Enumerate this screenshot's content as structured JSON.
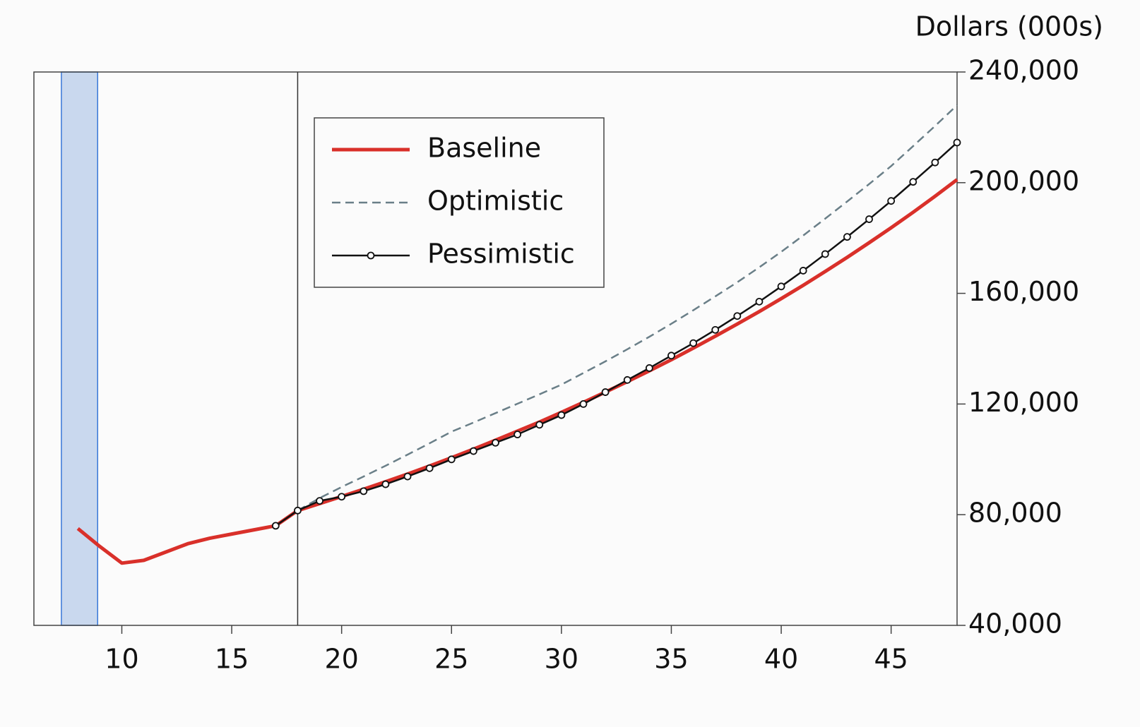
{
  "chart_data": {
    "type": "line",
    "y_axis_label": "Dollars (000s)",
    "x": [
      8,
      9,
      10,
      11,
      12,
      13,
      14,
      15,
      16,
      17,
      18,
      19,
      20,
      21,
      22,
      23,
      24,
      25,
      26,
      27,
      28,
      29,
      30,
      31,
      32,
      33,
      34,
      35,
      36,
      37,
      38,
      39,
      40,
      41,
      42,
      43,
      44,
      45,
      46,
      47,
      48
    ],
    "series": [
      {
        "name": "Baseline",
        "color": "#d9302a",
        "width": 5,
        "dashed": false,
        "values": [
          75000,
          68500,
          62500,
          63500,
          66500,
          69500,
          71500,
          73000,
          74500,
          76000,
          81500,
          84000,
          86600,
          89200,
          91900,
          94700,
          97600,
          100600,
          103700,
          106900,
          110200,
          113500,
          117000,
          120600,
          124300,
          128100,
          132000,
          136000,
          140200,
          144500,
          148900,
          153400,
          158100,
          162900,
          167900,
          173000,
          178300,
          183700,
          189300,
          195100,
          201100
        ]
      },
      {
        "name": "Optimistic",
        "color": "#6a7f88",
        "width": 2.5,
        "dashed": true,
        "values": [
          null,
          null,
          null,
          null,
          null,
          null,
          null,
          null,
          null,
          null,
          81500,
          86000,
          90000,
          93800,
          97700,
          101700,
          105800,
          110000,
          113300,
          116700,
          120100,
          123500,
          127000,
          131200,
          135400,
          139800,
          144300,
          149000,
          153900,
          158900,
          164000,
          169400,
          175000,
          180900,
          187000,
          193200,
          199500,
          206000,
          213200,
          220500,
          228000
        ]
      },
      {
        "name": "Pessimistic",
        "color": "#111111",
        "width": 2.5,
        "dashed": false,
        "marker": "circle",
        "values": [
          null,
          null,
          null,
          null,
          null,
          null,
          null,
          null,
          null,
          76000,
          81500,
          85000,
          86500,
          88500,
          91000,
          93800,
          96800,
          100000,
          103000,
          106000,
          109000,
          112500,
          116000,
          120000,
          124300,
          128700,
          133000,
          137500,
          142000,
          146800,
          151800,
          157000,
          162500,
          168200,
          174200,
          180400,
          186800,
          193400,
          200300,
          207300,
          214500
        ]
      }
    ],
    "xlim": [
      6,
      48
    ],
    "xticks": [
      10,
      15,
      20,
      25,
      30,
      35,
      40,
      45
    ],
    "ylim": [
      40000,
      240000
    ],
    "yticks": [
      {
        "value": 40000,
        "label": "40,000"
      },
      {
        "value": 80000,
        "label": "80,000"
      },
      {
        "value": 120000,
        "label": "120,000"
      },
      {
        "value": 160000,
        "label": "160,000"
      },
      {
        "value": 200000,
        "label": "200,000"
      },
      {
        "value": 240000,
        "label": "240,000"
      }
    ],
    "y_axis_side": "right",
    "shaded_x": [
      7.25,
      8.9
    ],
    "vline_x": 18,
    "legend": "upper-left"
  }
}
